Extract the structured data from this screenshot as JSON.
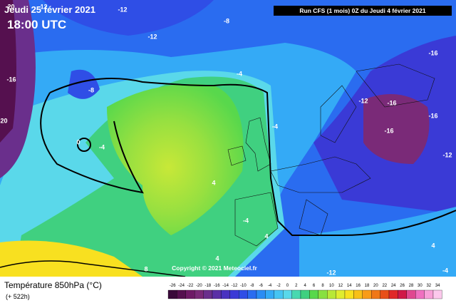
{
  "header": {
    "date": "Jeudi 25 février 2021",
    "time": "18:00 UTC",
    "run": "Run CFS (1 mois) 0Z du Jeudi 4 février 2021"
  },
  "copyright": "Copyright © 2021 Meteociel.fr",
  "footer": {
    "title": "Température 850hPa (°C)",
    "lead": "(+ 522h)"
  },
  "map_labels": [
    "-20",
    "-12",
    "-12",
    "-8",
    "-12",
    "-16",
    "-20",
    "-8",
    "-4",
    "-12",
    "-16",
    "-16",
    "-16",
    "-16",
    "-12",
    "-4",
    "0",
    "-4",
    "4",
    "-4",
    "4",
    "4",
    "8",
    "-12",
    "4",
    "-4"
  ],
  "legend": {
    "values": [
      -26,
      -24,
      -22,
      -20,
      -18,
      -16,
      -14,
      -12,
      -10,
      -8,
      -6,
      -4,
      -2,
      0,
      2,
      4,
      6,
      8,
      10,
      12,
      14,
      16,
      18,
      20,
      22,
      24,
      26,
      28,
      30,
      32,
      34
    ],
    "colors": [
      "#3a0a3a",
      "#55104f",
      "#6e1a66",
      "#7a2a78",
      "#6a2f8c",
      "#5a2fa6",
      "#4a32c0",
      "#3a3ad6",
      "#2f4ee6",
      "#2a6cf0",
      "#2a8cf4",
      "#34aaf6",
      "#46c4f2",
      "#5ad8ea",
      "#48d8b0",
      "#40d080",
      "#58d84c",
      "#88e040",
      "#b8e838",
      "#e0ec30",
      "#f8e020",
      "#f8c018",
      "#f89c18",
      "#f07818",
      "#e85018",
      "#e02828",
      "#d01848",
      "#e04890",
      "#f070c0",
      "#f8a0d8",
      "#fcc8ec"
    ]
  }
}
